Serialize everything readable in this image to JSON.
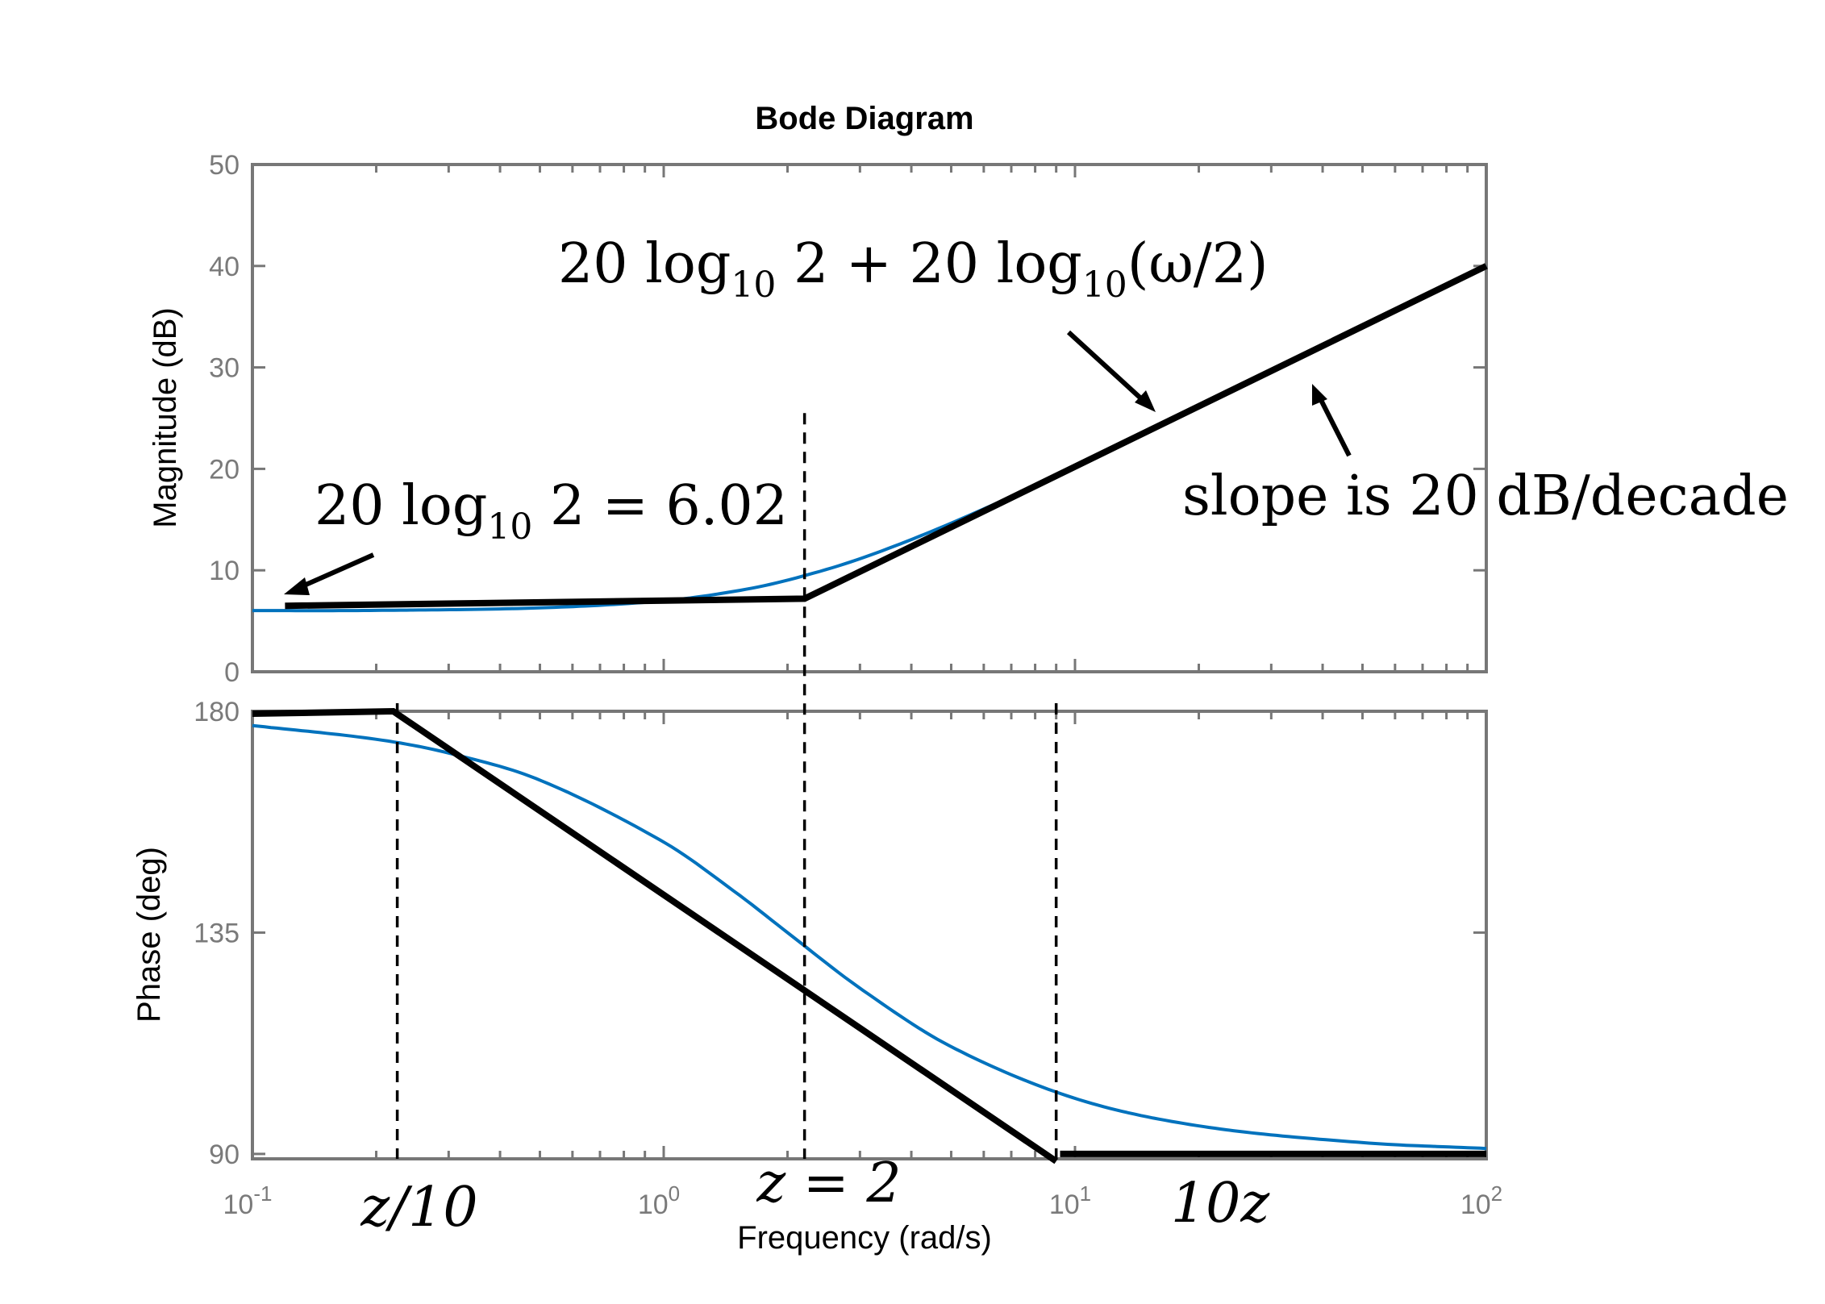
{
  "chart_data": {
    "type": "line",
    "title": "Bode Diagram",
    "xlabel": "Frequency  (rad/s)",
    "x_scale": "log",
    "xlim": [
      0.1,
      100
    ],
    "x_ticks": [
      {
        "value": 0.1,
        "base": "10",
        "exp": "-1"
      },
      {
        "value": 1,
        "base": "10",
        "exp": "0"
      },
      {
        "value": 10,
        "base": "10",
        "exp": "1"
      },
      {
        "value": 100,
        "base": "10",
        "exp": "2"
      }
    ],
    "grid": false,
    "colors": {
      "exact": "#0072BD",
      "asymptote": "#000000",
      "axis": "#777777"
    },
    "panels": [
      {
        "id": "magnitude",
        "ylabel": "Magnitude (dB)",
        "ylim": [
          0,
          50
        ],
        "yticks": [
          0,
          10,
          20,
          30,
          40,
          50
        ],
        "series": [
          {
            "kind": "exact",
            "x": [
              0.1,
              0.2,
              0.5,
              1,
              1.5,
              2,
              3,
              5,
              10,
              20,
              50,
              100
            ],
            "y": [
              6.03,
              6.05,
              6.3,
              6.99,
              7.96,
              9.03,
              11.14,
              14.65,
              20.17,
              26.06,
              34.0,
              40.0
            ]
          },
          {
            "kind": "asymptote",
            "x": [
              0.12,
              2.2,
              100
            ],
            "y": [
              6.5,
              7.2,
              40
            ]
          }
        ],
        "dashed_markers": [
          {
            "x": 2.2,
            "y_top": 25.5
          }
        ]
      },
      {
        "id": "phase",
        "ylabel": "Phase (deg)",
        "ylim": [
          89,
          180
        ],
        "yticks": [
          90,
          135,
          180
        ],
        "ytick_labels": [
          "90",
          "135",
          "180"
        ],
        "series": [
          {
            "kind": "exact",
            "x": [
              0.1,
              0.2,
              0.3,
              0.5,
              1,
              1.5,
              2,
              3,
              5,
              10,
              20,
              50,
              100
            ],
            "y": [
              177.1,
              174.3,
              171.5,
              166.0,
              153.4,
              143.1,
              135.0,
              123.7,
              111.8,
              101.3,
              95.7,
              92.3,
              91.1
            ]
          },
          {
            "kind": "asymptote",
            "x": [
              0.1,
              0.22,
              9.0
            ],
            "y": [
              179.5,
              180.0,
              88.5
            ]
          },
          {
            "kind": "asymptote",
            "x": [
              9.2,
              100
            ],
            "y": [
              90.0,
              90.0
            ]
          }
        ],
        "dashed_markers": [
          {
            "x": 0.225
          },
          {
            "x": 2.2
          },
          {
            "x": 9.0
          }
        ]
      }
    ],
    "annotations": {
      "a1_pre": "20 log",
      "a1_sub": "10",
      "a1_post": " 2 = 6.02",
      "a2_pre": "20 log",
      "a2_sub": "10",
      "a2_mid": " 2 + 20 log",
      "a2_sub2": "10",
      "a2_post": "(ω/2)",
      "slope": "slope is 20 dB/decade",
      "z_over_10": "z/10",
      "z_eq_2": "z = 2",
      "ten_z": "10z"
    }
  }
}
